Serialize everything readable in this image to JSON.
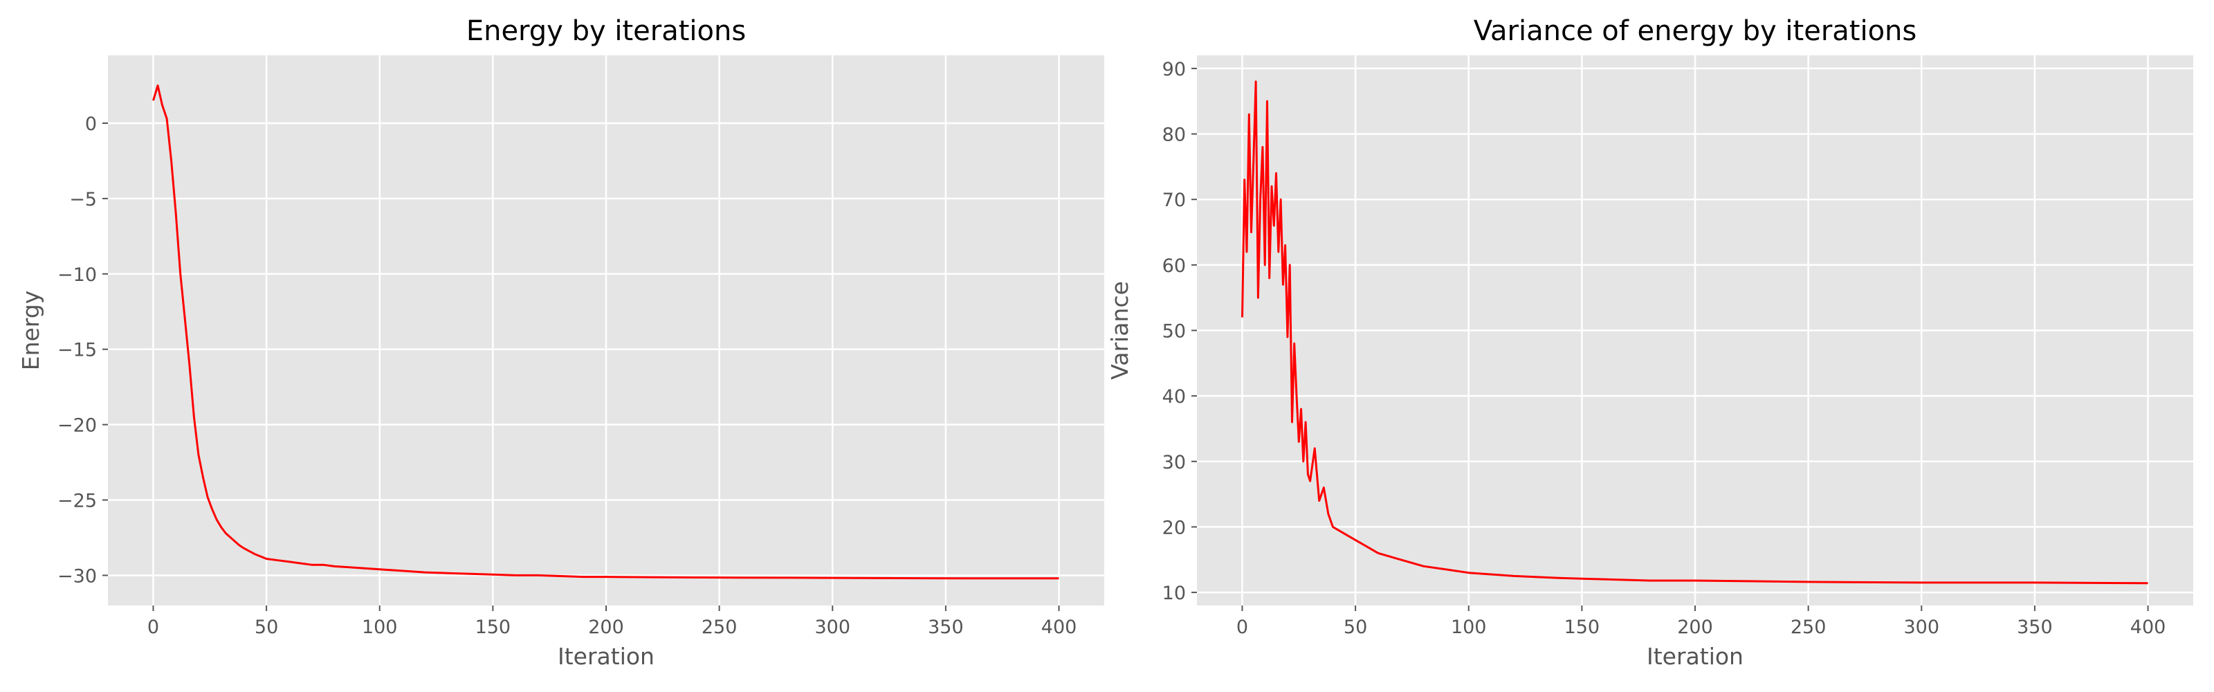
{
  "colors": {
    "series": "#ff0000",
    "plot_background": "#e5e5e5",
    "grid": "#ffffff",
    "text": "#555555"
  },
  "chart_data": [
    {
      "type": "line",
      "title": "Energy by iterations",
      "xlabel": "Iteration",
      "ylabel": "Energy",
      "grid": true,
      "xlim": [
        -20,
        420
      ],
      "ylim": [
        -32,
        4.5
      ],
      "xticks": [
        0,
        50,
        100,
        150,
        200,
        250,
        300,
        350,
        400
      ],
      "yticks": [
        0,
        -5,
        -10,
        -15,
        -20,
        -25,
        -30
      ],
      "xtick_labels": [
        "0",
        "50",
        "100",
        "150",
        "200",
        "250",
        "300",
        "350",
        "400"
      ],
      "ytick_labels": [
        "0",
        "−5",
        "−10",
        "−15",
        "−20",
        "−25",
        "−30"
      ],
      "series": [
        {
          "color": "#ff0000",
          "x": [
            0,
            2,
            4,
            6,
            8,
            10,
            12,
            14,
            16,
            18,
            20,
            22,
            24,
            26,
            28,
            30,
            32,
            35,
            38,
            40,
            45,
            50,
            55,
            60,
            65,
            70,
            75,
            80,
            90,
            100,
            110,
            120,
            130,
            140,
            150,
            160,
            170,
            180,
            190,
            200,
            220,
            240,
            260,
            280,
            300,
            320,
            340,
            360,
            380,
            400
          ],
          "y": [
            1.5,
            2.5,
            1.2,
            0.3,
            -2.5,
            -6,
            -10,
            -13,
            -16,
            -19.5,
            -22,
            -23.5,
            -24.8,
            -25.6,
            -26.3,
            -26.8,
            -27.2,
            -27.6,
            -28.0,
            -28.2,
            -28.6,
            -28.9,
            -29.0,
            -29.1,
            -29.2,
            -29.3,
            -29.3,
            -29.4,
            -29.5,
            -29.6,
            -29.7,
            -29.8,
            -29.85,
            -29.9,
            -29.95,
            -30.0,
            -30.0,
            -30.05,
            -30.1,
            -30.1,
            -30.12,
            -30.14,
            -30.15,
            -30.16,
            -30.17,
            -30.18,
            -30.19,
            -30.2,
            -30.2,
            -30.2
          ]
        }
      ]
    },
    {
      "type": "line",
      "title": "Variance of energy by iterations",
      "xlabel": "Iteration",
      "ylabel": "Variance",
      "grid": true,
      "xlim": [
        -20,
        420
      ],
      "ylim": [
        8,
        92
      ],
      "xticks": [
        0,
        50,
        100,
        150,
        200,
        250,
        300,
        350,
        400
      ],
      "yticks": [
        10,
        20,
        30,
        40,
        50,
        60,
        70,
        80,
        90
      ],
      "xtick_labels": [
        "0",
        "50",
        "100",
        "150",
        "200",
        "250",
        "300",
        "350",
        "400"
      ],
      "ytick_labels": [
        "10",
        "20",
        "30",
        "40",
        "50",
        "60",
        "70",
        "80",
        "90"
      ],
      "series": [
        {
          "color": "#ff0000",
          "x": [
            0,
            1,
            2,
            3,
            4,
            5,
            6,
            7,
            8,
            9,
            10,
            11,
            12,
            13,
            14,
            15,
            16,
            17,
            18,
            19,
            20,
            21,
            22,
            23,
            24,
            25,
            26,
            27,
            28,
            29,
            30,
            32,
            34,
            36,
            38,
            40,
            45,
            50,
            55,
            60,
            70,
            80,
            90,
            100,
            120,
            140,
            160,
            180,
            200,
            250,
            300,
            350,
            400
          ],
          "y": [
            52,
            73,
            62,
            83,
            65,
            76,
            88,
            55,
            70,
            78,
            60,
            85,
            58,
            72,
            66,
            74,
            62,
            70,
            57,
            63,
            49,
            60,
            36,
            48,
            40,
            33,
            38,
            30,
            36,
            28,
            27,
            32,
            24,
            26,
            22,
            20,
            19,
            18,
            17,
            16,
            15,
            14,
            13.5,
            13,
            12.5,
            12.2,
            12,
            11.8,
            11.8,
            11.6,
            11.5,
            11.5,
            11.4
          ]
        }
      ]
    }
  ]
}
